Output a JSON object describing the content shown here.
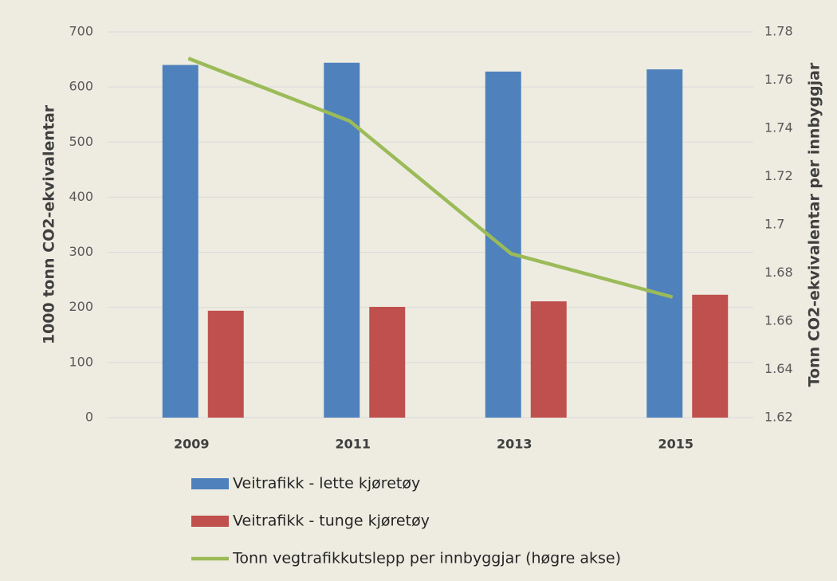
{
  "chart_data": {
    "type": "bar_line",
    "categories": [
      "2009",
      "2011",
      "2013",
      "2015"
    ],
    "series": [
      {
        "name": "Veitrafikk - lette kjøretøy",
        "type": "bar",
        "color": "#4f81bd",
        "values": [
          640,
          644,
          628,
          632
        ]
      },
      {
        "name": "Veitrafikk - tunge kjøretøy",
        "type": "bar",
        "color": "#c0504d",
        "values": [
          194,
          201,
          211,
          223
        ]
      },
      {
        "name": "Tonn vegtrafikkutslepp per innbyggjar (høgre akse)",
        "type": "line",
        "axis": "y2",
        "color": "#9bbb59",
        "values": [
          1.769,
          1.743,
          1.688,
          1.67
        ]
      }
    ],
    "ylabel": "1000 tonn CO2-ekvivalentar",
    "y2label": "Tonn CO2-ekvivalentar  per innbyggjar",
    "ylim": [
      0,
      700
    ],
    "yticks": [
      0,
      100,
      200,
      300,
      400,
      500,
      600,
      700
    ],
    "y2lim": [
      1.62,
      1.78
    ],
    "y2ticks": [
      1.62,
      1.64,
      1.66,
      1.68,
      1.7,
      1.72,
      1.74,
      1.76,
      1.78
    ],
    "grid": true,
    "legend": "bottom"
  }
}
